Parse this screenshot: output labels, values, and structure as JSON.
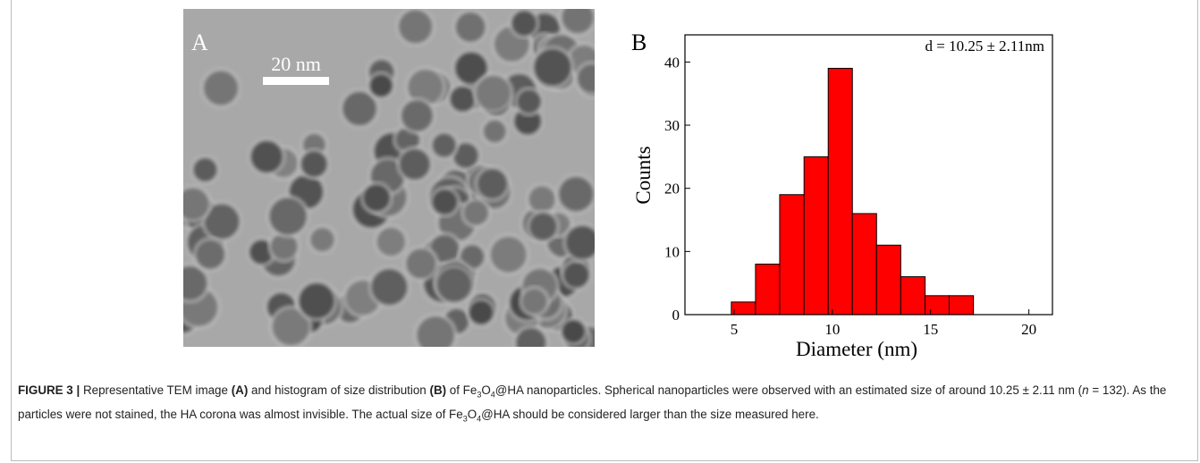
{
  "panel_a": {
    "label": "A",
    "scale_bar": "20 nm"
  },
  "chart_data": {
    "type": "histogram",
    "label": "B",
    "annotation": "d = 10.25 ± 2.11nm",
    "x_label": "Diameter (nm)",
    "y_label": "Counts",
    "bins": [
      4.86,
      6.09,
      7.32,
      8.56,
      9.79,
      11.02,
      12.25,
      13.48,
      14.72,
      15.95,
      17.18
    ],
    "values": [
      2,
      8,
      19,
      25,
      39,
      16,
      11,
      6,
      3,
      3
    ],
    "color": "#ff0000",
    "xlim": [
      2.5,
      21.2
    ],
    "xticks": [
      5,
      10,
      15,
      20
    ],
    "ylim": [
      0,
      44.3
    ],
    "yticks": [
      0,
      10,
      20,
      30,
      40
    ]
  },
  "caption": {
    "segments": [
      "FIGURE 3 |",
      " Representative TEM image ",
      "(A)",
      " and histogram of size distribution ",
      "(B)",
      " of Fe",
      "3",
      "O",
      "4",
      "@HA nanoparticles. Spherical nanoparticles were observed with an estimated size of around 10.25 ± 2.11 nm (",
      "n",
      " = 132). As the particles were not stained, the HA corona was almost invisible. The actual size of Fe",
      "3",
      "O",
      "4",
      "@HA should be considered larger than the size measured here."
    ]
  }
}
